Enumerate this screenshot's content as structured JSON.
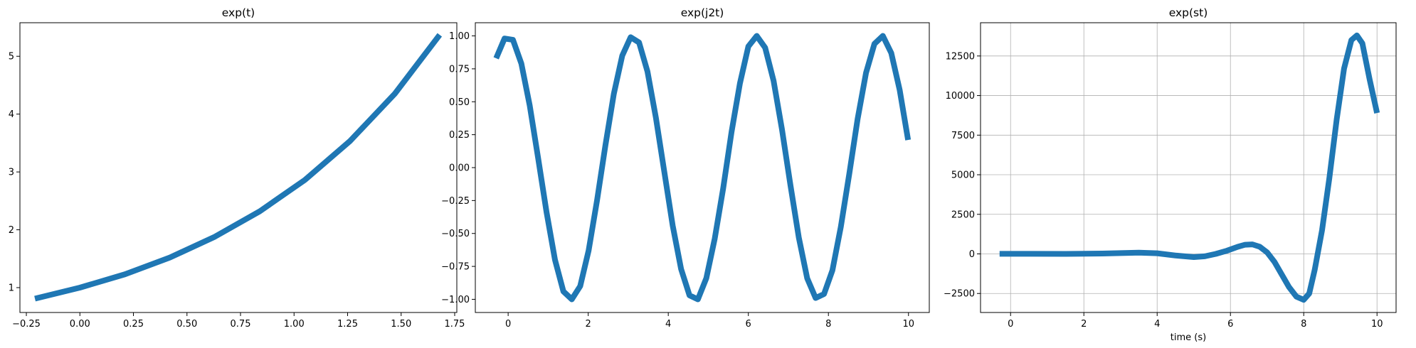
{
  "chart_data": [
    {
      "type": "line",
      "title": "exp(t)",
      "xlabel": "",
      "ylabel": "",
      "grid": false,
      "xlim": [
        -0.28,
        1.76
      ],
      "ylim": [
        0.57,
        5.58
      ],
      "xticks": [
        -0.25,
        0.0,
        0.25,
        0.5,
        0.75,
        1.0,
        1.25,
        1.5,
        1.75
      ],
      "xtick_labels": [
        "−0.25",
        "0.00",
        "0.25",
        "0.50",
        "0.75",
        "1.00",
        "1.25",
        "1.50",
        "1.75"
      ],
      "yticks": [
        1,
        2,
        3,
        4,
        5
      ],
      "ytick_labels": [
        "1",
        "2",
        "3",
        "4",
        "5"
      ],
      "color": "#1f77b4",
      "series": [
        {
          "x": [
            -0.21,
            0.0,
            0.21,
            0.42,
            0.63,
            0.84,
            1.05,
            1.26,
            1.47,
            1.68
          ],
          "y": [
            0.81,
            1.0,
            1.23,
            1.52,
            1.88,
            2.32,
            2.86,
            3.53,
            4.35,
            5.37
          ]
        }
      ]
    },
    {
      "type": "line",
      "title": "exp(j2t)",
      "xlabel": "",
      "ylabel": "",
      "grid": false,
      "xlim": [
        -0.82,
        10.52
      ],
      "ylim": [
        -1.1,
        1.1
      ],
      "xticks": [
        0,
        2,
        4,
        6,
        8,
        10
      ],
      "xtick_labels": [
        "0",
        "2",
        "4",
        "6",
        "8",
        "10"
      ],
      "yticks": [
        1.0,
        0.75,
        0.5,
        0.25,
        0.0,
        -0.25,
        -0.5,
        -0.75,
        -1.0
      ],
      "ytick_labels": [
        "1.00",
        "0.75",
        "0.50",
        "0.25",
        "0.00",
        "−0.25",
        "−0.50",
        "−0.75",
        "−1.00"
      ],
      "color": "#1f77b4",
      "series": [
        {
          "x": [
            -0.3,
            -0.09,
            0.12,
            0.33,
            0.54,
            0.75,
            0.96,
            1.17,
            1.38,
            1.59,
            1.8,
            2.01,
            2.22,
            2.43,
            2.64,
            2.85,
            3.06,
            3.27,
            3.48,
            3.69,
            3.9,
            4.11,
            4.32,
            4.53,
            4.74,
            4.95,
            5.16,
            5.37,
            5.58,
            5.79,
            6.0,
            6.21,
            6.42,
            6.63,
            6.84,
            7.05,
            7.26,
            7.47,
            7.68,
            7.89,
            8.1,
            8.31,
            8.52,
            8.73,
            8.94,
            9.15,
            9.36,
            9.57,
            9.78,
            9.99
          ],
          "y": [
            0.83,
            0.98,
            0.97,
            0.79,
            0.47,
            0.07,
            -0.34,
            -0.7,
            -0.94,
            -1.0,
            -0.9,
            -0.63,
            -0.25,
            0.17,
            0.56,
            0.85,
            0.99,
            0.95,
            0.73,
            0.38,
            -0.03,
            -0.44,
            -0.77,
            -0.97,
            -1.0,
            -0.84,
            -0.54,
            -0.16,
            0.27,
            0.64,
            0.92,
            1.0,
            0.91,
            0.66,
            0.29,
            -0.13,
            -0.53,
            -0.84,
            -0.99,
            -0.96,
            -0.78,
            -0.45,
            -0.05,
            0.37,
            0.72,
            0.94,
            1.0,
            0.87,
            0.59,
            0.21
          ]
        }
      ]
    },
    {
      "type": "line",
      "title": "exp(st)",
      "xlabel": "time (s)",
      "ylabel": "",
      "grid": true,
      "xlim": [
        -0.82,
        10.52
      ],
      "ylim": [
        -3700,
        14600
      ],
      "xticks": [
        0,
        2,
        4,
        6,
        8,
        10
      ],
      "xtick_labels": [
        "0",
        "2",
        "4",
        "6",
        "8",
        "10"
      ],
      "yticks": [
        -2500,
        0,
        2500,
        5000,
        7500,
        10000,
        12500
      ],
      "ytick_labels": [
        "−2500",
        "0",
        "2500",
        "5000",
        "7500",
        "10000",
        "12500"
      ],
      "color": "#1f77b4",
      "series": [
        {
          "x": [
            -0.3,
            0.5,
            1.5,
            2.5,
            3.0,
            3.5,
            4.0,
            4.5,
            5.0,
            5.3,
            5.6,
            5.9,
            6.2,
            6.4,
            6.6,
            6.8,
            7.0,
            7.2,
            7.4,
            7.6,
            7.8,
            8.0,
            8.15,
            8.3,
            8.5,
            8.7,
            8.9,
            9.1,
            9.3,
            9.45,
            9.6,
            9.8,
            10.0
          ],
          "y": [
            5,
            5,
            0,
            20,
            50,
            80,
            40,
            -100,
            -200,
            -150,
            0,
            200,
            450,
            580,
            600,
            450,
            100,
            -500,
            -1300,
            -2100,
            -2700,
            -2900,
            -2500,
            -1000,
            1500,
            4800,
            8500,
            11700,
            13500,
            13800,
            13300,
            11000,
            8900
          ]
        }
      ]
    }
  ]
}
